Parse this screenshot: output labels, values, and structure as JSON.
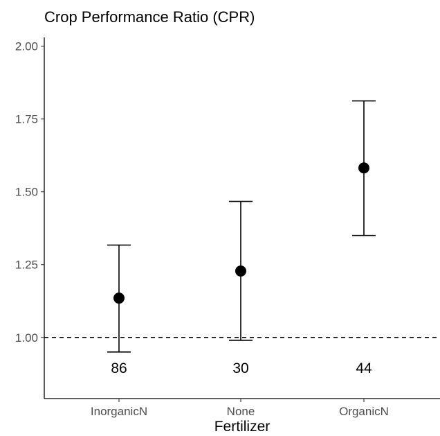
{
  "chart_data": {
    "type": "scatter",
    "title": "Crop Performance Ratio (CPR)",
    "xlabel": "Fertilizer",
    "ylabel": "",
    "categories": [
      "InorganicN",
      "None",
      "OrganicN"
    ],
    "estimates": [
      1.135,
      1.228,
      1.582
    ],
    "lower": [
      0.95,
      0.99,
      1.35
    ],
    "upper": [
      1.317,
      1.467,
      1.812
    ],
    "counts": [
      "86",
      "30",
      "44"
    ],
    "count_y": 0.895,
    "reference_line": 1.0,
    "ylim": [
      0.79,
      2.03
    ],
    "yticks": [
      1.0,
      1.25,
      1.5,
      1.75,
      2.0
    ],
    "ytick_labels": [
      "1.00",
      "1.25",
      "1.50",
      "1.75",
      "2.00"
    ],
    "grid": false,
    "colors": {
      "points": "#000000",
      "tick_text": "#4d4d4d",
      "reference_line": "#000000"
    }
  }
}
